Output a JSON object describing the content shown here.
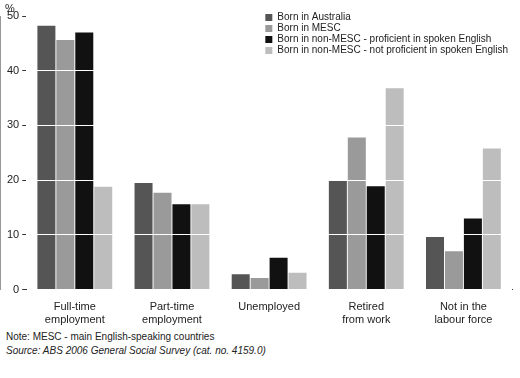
{
  "chart_data": {
    "type": "bar",
    "ylabel": "%",
    "categories": [
      "Full-time employment",
      "Part-time employment",
      "Unemployed",
      "Retired from work",
      "Not in the labour force"
    ],
    "series": [
      {
        "name": "Born in Australia",
        "color": "#555555",
        "values": [
          48.2,
          19.5,
          2.8,
          20.0,
          9.6
        ]
      },
      {
        "name": "Born in MESC",
        "color": "#9a9a9a",
        "values": [
          45.6,
          17.7,
          2.1,
          27.8,
          7.0
        ]
      },
      {
        "name": "Born in non-MESC - proficient in spoken English",
        "color": "#111111",
        "values": [
          47.0,
          15.6,
          5.8,
          18.9,
          13.0
        ]
      },
      {
        "name": "Born in non-MESC - not proficient in spoken English",
        "color": "#bdbdbd",
        "values": [
          18.8,
          15.6,
          3.1,
          36.8,
          25.8
        ]
      }
    ],
    "ylim": [
      0,
      50
    ],
    "yticks": [
      0,
      10,
      20,
      30,
      40,
      50
    ],
    "grid": true,
    "legend": "upper right",
    "notes": [
      "Note: MESC - main English-speaking countries",
      "Source: ABS 2006 General Social Survey (cat. no. 4159.0)"
    ]
  }
}
